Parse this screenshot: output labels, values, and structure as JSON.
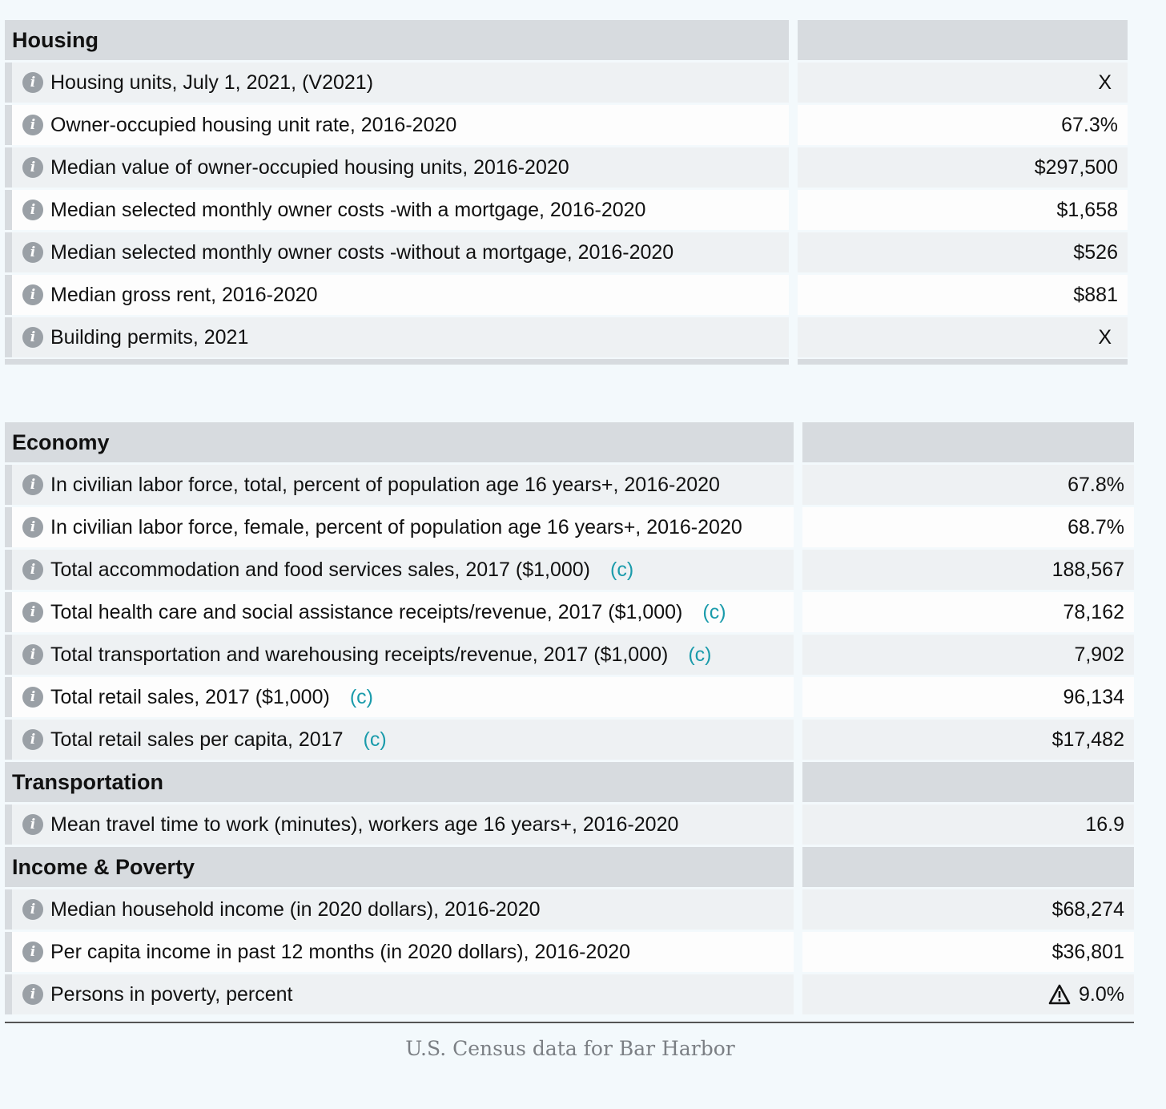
{
  "housing": {
    "title": "Housing",
    "rows": [
      {
        "label": "Housing units, July 1, 2021, (V2021)",
        "value": "X"
      },
      {
        "label": "Owner-occupied housing unit rate, 2016-2020",
        "value": "67.3%"
      },
      {
        "label": "Median value of owner-occupied housing units, 2016-2020",
        "value": "$297,500"
      },
      {
        "label": "Median selected monthly owner costs -with a mortgage, 2016-2020",
        "value": "$1,658"
      },
      {
        "label": "Median selected monthly owner costs -without a mortgage, 2016-2020",
        "value": "$526"
      },
      {
        "label": "Median gross rent, 2016-2020",
        "value": "$881"
      },
      {
        "label": "Building permits, 2021",
        "value": "X"
      }
    ]
  },
  "economy": {
    "title": "Economy",
    "rows": [
      {
        "label": "In civilian labor force, total, percent of population age 16 years+, 2016-2020",
        "value": "67.8%",
        "fn": ""
      },
      {
        "label": "In civilian labor force, female, percent of population age 16 years+, 2016-2020",
        "value": "68.7%",
        "fn": ""
      },
      {
        "label": "Total accommodation and food services sales, 2017 ($1,000)",
        "value": "188,567",
        "fn": "(c)"
      },
      {
        "label": "Total health care and social assistance receipts/revenue, 2017 ($1,000)",
        "value": "78,162",
        "fn": "(c)"
      },
      {
        "label": "Total transportation and warehousing receipts/revenue, 2017 ($1,000)",
        "value": "7,902",
        "fn": "(c)"
      },
      {
        "label": "Total retail sales, 2017 ($1,000)",
        "value": "96,134",
        "fn": "(c)"
      },
      {
        "label": "Total retail sales per capita, 2017",
        "value": "$17,482",
        "fn": "(c)"
      }
    ]
  },
  "transportation": {
    "title": "Transportation",
    "rows": [
      {
        "label": "Mean travel time to work (minutes), workers age 16 years+, 2016-2020",
        "value": "16.9"
      }
    ]
  },
  "income": {
    "title": "Income & Poverty",
    "rows": [
      {
        "label": "Median household income (in 2020 dollars), 2016-2020",
        "value": "$68,274"
      },
      {
        "label": "Per capita income in past 12 months (in 2020 dollars), 2016-2020",
        "value": "$36,801"
      },
      {
        "label": "Persons in poverty, percent",
        "value": "9.0%"
      }
    ]
  },
  "icons": {
    "info": "info-icon",
    "warning": "warning-triangle-icon"
  },
  "caption": "U.S. Census data for Bar Harbor"
}
